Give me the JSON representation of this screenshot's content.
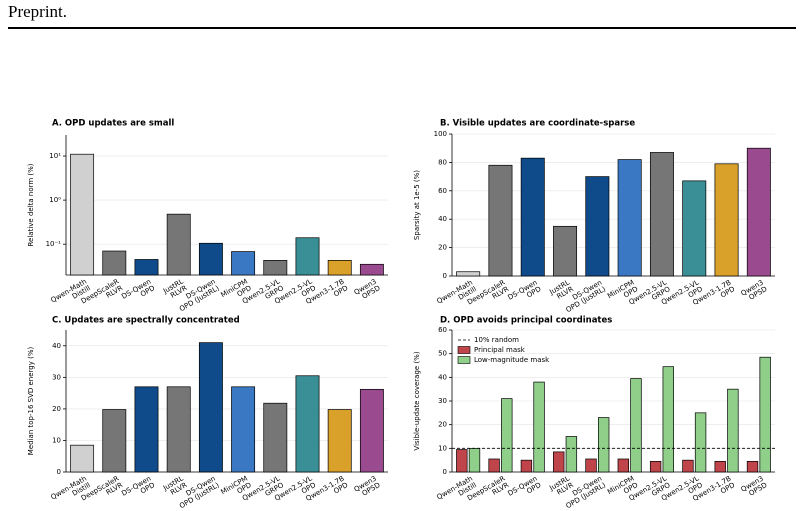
{
  "header": "Preprint.",
  "chart_data": [
    {
      "type": "bar",
      "title": "A. OPD updates are small",
      "ylabel": "Relative delta norm (%)",
      "scale": "log",
      "categories": [
        [
          "Qwen-Math",
          "Distill"
        ],
        [
          "DeepScaleR",
          "RLVR"
        ],
        [
          "DS-Qwen",
          "OPD"
        ],
        [
          "JustRL",
          "RLVR"
        ],
        [
          "DS-Qwen",
          "OPD (JustRL)"
        ],
        [
          "MiniCPM",
          "OPD"
        ],
        [
          "Qwen2.5-VL",
          "GRPO"
        ],
        [
          "Qwen2.5-VL",
          "OPD"
        ],
        [
          "Qwen3-1.7B",
          "OPD"
        ],
        [
          "Qwen3",
          "OPSD"
        ]
      ],
      "values": [
        11,
        0.07,
        0.045,
        0.48,
        0.105,
        0.068,
        0.043,
        0.14,
        0.043,
        0.035
      ],
      "colors": [
        "#d0d0d0",
        "#767676",
        "#0f4a8a",
        "#767676",
        "#0f4a8a",
        "#3b78c4",
        "#767676",
        "#3a8f96",
        "#d9a02a",
        "#9a4a8f"
      ],
      "ylim": [
        0.02,
        30
      ],
      "yticks": [
        {
          "value": 0.1,
          "label": "10⁻¹"
        },
        {
          "value": 1,
          "label": "10⁰"
        },
        {
          "value": 10,
          "label": "10¹"
        }
      ],
      "grid": true
    },
    {
      "type": "bar",
      "title": "B. Visible updates are coordinate-sparse",
      "ylabel": "Sparsity at 1e-5 (%)",
      "categories": [
        [
          "Qwen-Math",
          "Distill"
        ],
        [
          "DeepScaleR",
          "RLVR"
        ],
        [
          "DS-Qwen",
          "OPD"
        ],
        [
          "JustRL",
          "RLVR"
        ],
        [
          "DS-Qwen",
          "OPD (JustRL)"
        ],
        [
          "MiniCPM",
          "OPD"
        ],
        [
          "Qwen2.5-VL",
          "GRPO"
        ],
        [
          "Qwen2.5-VL",
          "OPD"
        ],
        [
          "Qwen3-1.7B",
          "OPD"
        ],
        [
          "Qwen3",
          "OPSD"
        ]
      ],
      "values": [
        3,
        78,
        83,
        35,
        70,
        82,
        87,
        67,
        79,
        90
      ],
      "colors": [
        "#d0d0d0",
        "#767676",
        "#0f4a8a",
        "#767676",
        "#0f4a8a",
        "#3b78c4",
        "#767676",
        "#3a8f96",
        "#d9a02a",
        "#9a4a8f"
      ],
      "ylim": [
        0,
        100
      ],
      "yticks": [
        0,
        20,
        40,
        60,
        80,
        100
      ],
      "grid": true
    },
    {
      "type": "bar",
      "title": "C. Updates are spectrally concentrated",
      "ylabel": "Median top-16 SVD energy (%)",
      "categories": [
        [
          "Qwen-Math",
          "Distill"
        ],
        [
          "DeepScaleR",
          "RLVR"
        ],
        [
          "DS-Qwen",
          "OPD"
        ],
        [
          "JustRL",
          "RLVR"
        ],
        [
          "DS-Qwen",
          "OPD (JustRL)"
        ],
        [
          "MiniCPM",
          "OPD"
        ],
        [
          "Qwen2.5-VL",
          "GRPO"
        ],
        [
          "Qwen2.5-VL",
          "OPD"
        ],
        [
          "Qwen3-1.7B",
          "OPD"
        ],
        [
          "Qwen3",
          "OPSD"
        ]
      ],
      "values": [
        8.5,
        19.8,
        27,
        27,
        41,
        27,
        21.8,
        30.5,
        19.8,
        26.2
      ],
      "colors": [
        "#d0d0d0",
        "#767676",
        "#0f4a8a",
        "#767676",
        "#0f4a8a",
        "#3b78c4",
        "#767676",
        "#3a8f96",
        "#d9a02a",
        "#9a4a8f"
      ],
      "ylim": [
        0,
        45
      ],
      "yticks": [
        0,
        10,
        20,
        30,
        40
      ],
      "grid": true
    },
    {
      "type": "bar",
      "title": "D. OPD avoids principal coordinates",
      "ylabel": "Visible-update coverage (%)",
      "categories": [
        [
          "Qwen-Math",
          "Distill"
        ],
        [
          "DeepScaleR",
          "RLVR"
        ],
        [
          "DS-Qwen",
          "OPD"
        ],
        [
          "JustRL",
          "RLVR"
        ],
        [
          "DS-Qwen",
          "OPD (JustRL)"
        ],
        [
          "MiniCPM",
          "OPD"
        ],
        [
          "Qwen2.5-VL",
          "GRPO"
        ],
        [
          "Qwen2.5-VL",
          "OPD"
        ],
        [
          "Qwen3-1.7B",
          "OPD"
        ],
        [
          "Qwen3",
          "OPSD"
        ]
      ],
      "series": [
        {
          "name": "Principal mask",
          "color": "#c0454a",
          "values": [
            9.5,
            5.5,
            5,
            8.5,
            5.5,
            5.5,
            4.5,
            5,
            4.5,
            4.5
          ]
        },
        {
          "name": "Low-magnitude mask",
          "color": "#8fcf8a",
          "values": [
            10,
            31,
            38,
            15,
            23,
            39.5,
            44.5,
            25,
            35,
            48.5
          ]
        }
      ],
      "hline": {
        "value": 10,
        "label": "10% random"
      },
      "legend": "upper left",
      "ylim": [
        0,
        60
      ],
      "yticks": [
        0,
        10,
        20,
        30,
        40,
        50,
        60
      ],
      "grid": true
    }
  ]
}
